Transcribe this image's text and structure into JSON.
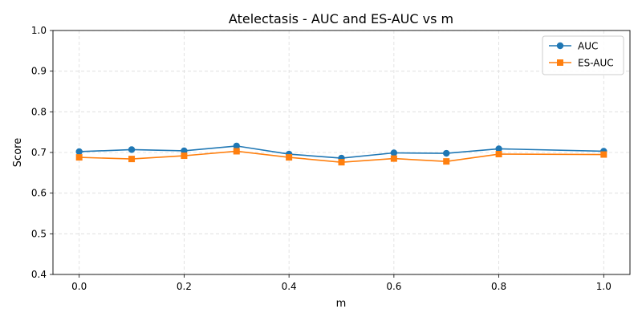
{
  "chart_data": {
    "type": "line",
    "title": "Atelectasis - AUC and ES-AUC vs m",
    "xlabel": "m",
    "ylabel": "Score",
    "xlim": [
      -0.05,
      1.05
    ],
    "ylim": [
      0.4,
      1.0
    ],
    "xticks": [
      "0.0",
      "0.2",
      "0.4",
      "0.6",
      "0.8",
      "1.0"
    ],
    "yticks": [
      "0.4",
      "0.5",
      "0.6",
      "0.7",
      "0.8",
      "0.9",
      "1.0"
    ],
    "grid": true,
    "legend_position": "top-right",
    "x": [
      0.0,
      0.1,
      0.2,
      0.3,
      0.4,
      0.5,
      0.6,
      0.7,
      0.8,
      1.0
    ],
    "series": [
      {
        "name": "AUC",
        "marker": "circle",
        "color": "#1f77b4",
        "values": [
          0.702,
          0.707,
          0.704,
          0.716,
          0.696,
          0.686,
          0.699,
          0.698,
          0.709,
          0.703
        ]
      },
      {
        "name": "ES-AUC",
        "marker": "square",
        "color": "#ff7f0e",
        "values": [
          0.688,
          0.684,
          0.692,
          0.703,
          0.688,
          0.676,
          0.685,
          0.678,
          0.696,
          0.695
        ]
      }
    ]
  }
}
